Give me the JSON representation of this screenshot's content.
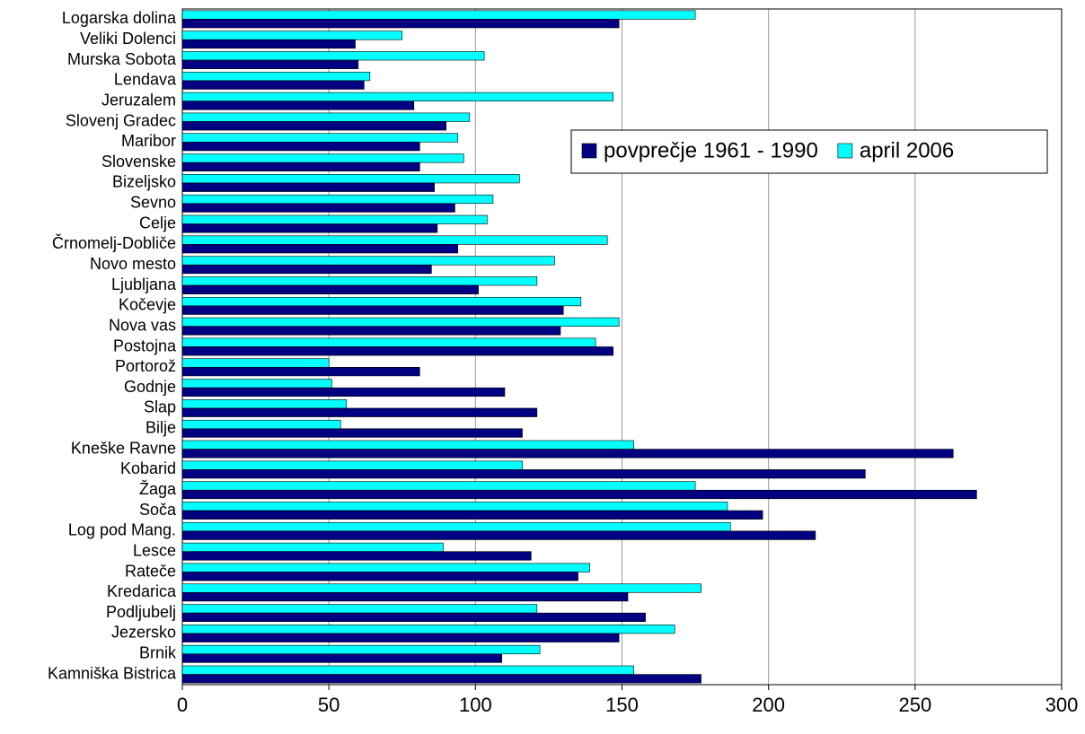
{
  "chart_data": {
    "type": "hbar",
    "categories": [
      "Logarska dolina",
      "Veliki Dolenci",
      "Murska Sobota",
      "Lendava",
      "Jeruzalem",
      "Slovenj Gradec",
      "Maribor",
      "Slovenske",
      "Bizeljsko",
      "Sevno",
      "Celje",
      "Črnomelj-Dobliče",
      "Novo mesto",
      "Ljubljana",
      "Kočevje",
      "Nova vas",
      "Postojna",
      "Portorož",
      "Godnje",
      "Slap",
      "Bilje",
      "Kneške Ravne",
      "Kobarid",
      "Žaga",
      "Soča",
      "Log pod Mang.",
      "Lesce",
      "Rateče",
      "Kredarica",
      "Podljubelj",
      "Jezersko",
      "Brnik",
      "Kamniška Bistrica"
    ],
    "series": [
      {
        "name": "povprečje 1961 - 1990",
        "color": "#000080",
        "values": [
          149,
          59,
          60,
          62,
          79,
          90,
          81,
          81,
          86,
          93,
          87,
          94,
          85,
          101,
          130,
          129,
          147,
          81,
          110,
          121,
          116,
          263,
          233,
          271,
          198,
          216,
          119,
          135,
          152,
          158,
          149,
          109,
          177
        ]
      },
      {
        "name": "april 2006",
        "color": "#00ffff",
        "values": [
          175,
          75,
          103,
          64,
          147,
          98,
          94,
          96,
          115,
          106,
          104,
          145,
          127,
          121,
          136,
          149,
          141,
          50,
          51,
          56,
          54,
          154,
          116,
          175,
          186,
          187,
          89,
          139,
          177,
          121,
          168,
          122,
          154
        ]
      }
    ],
    "xlim": [
      0,
      300
    ],
    "xticks": [
      0,
      50,
      100,
      150,
      200,
      250,
      300
    ],
    "grid": true,
    "legend": "upper right"
  }
}
